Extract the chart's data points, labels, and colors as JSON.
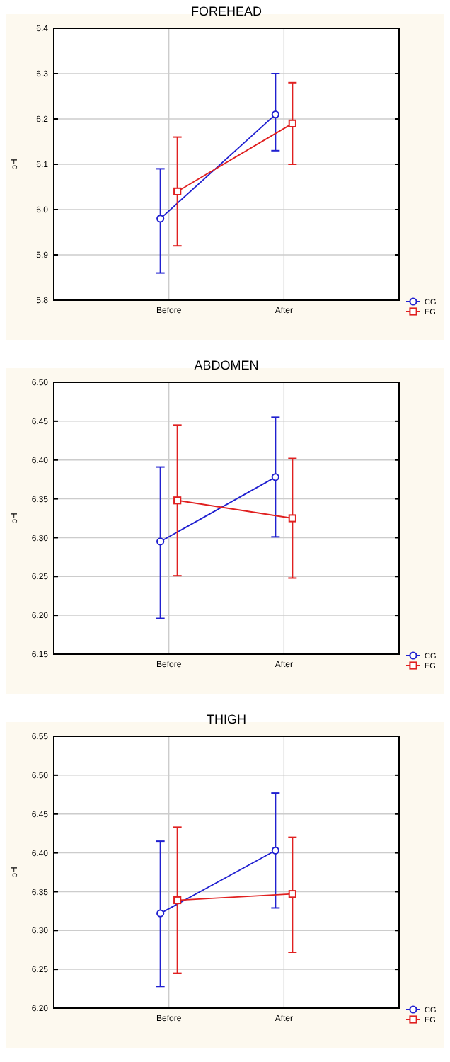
{
  "chart_data": [
    {
      "type": "line",
      "title": "FOREHEAD",
      "ylabel": "pH",
      "categories": [
        "Before",
        "After"
      ],
      "ylim": [
        5.8,
        6.4
      ],
      "yticks": [
        5.8,
        5.9,
        {
          "value": 6.0,
          "label": "6.0"
        },
        6.1,
        6.2,
        6.3,
        6.4
      ],
      "grid": true,
      "legend": "bottom right",
      "line_style": "solid",
      "series": [
        {
          "name": "CG",
          "color": "#2020d0",
          "marker": "circle",
          "values": [
            5.98,
            6.21
          ],
          "errors": [
            [
              5.86,
              6.09
            ],
            [
              6.13,
              6.3
            ]
          ]
        },
        {
          "name": "EG",
          "color": "#e02020",
          "marker": "square",
          "values": [
            6.04,
            6.19
          ],
          "errors": [
            [
              5.92,
              6.16
            ],
            [
              6.1,
              6.28
            ]
          ]
        }
      ]
    },
    {
      "type": "line",
      "title": "ABDOMEN",
      "ylabel": "pH",
      "categories": [
        "Before",
        "After"
      ],
      "ylim": [
        6.15,
        6.5
      ],
      "yticks": [
        6.15,
        {
          "value": 6.2,
          "label": "6.20"
        },
        6.25,
        {
          "value": 6.3,
          "label": "6.30"
        },
        6.35,
        {
          "value": 6.4,
          "label": "6.40"
        },
        6.45,
        {
          "value": 6.5,
          "label": "6.50"
        }
      ],
      "grid": true,
      "legend": "bottom right",
      "line_style": "solid",
      "series": [
        {
          "name": "CG",
          "color": "#2020d0",
          "marker": "circle",
          "values": [
            6.295,
            6.378
          ],
          "errors": [
            [
              6.196,
              6.391
            ],
            [
              6.301,
              6.455
            ]
          ]
        },
        {
          "name": "EG",
          "color": "#e02020",
          "marker": "square",
          "values": [
            6.348,
            6.325
          ],
          "errors": [
            [
              6.251,
              6.445
            ],
            [
              6.248,
              6.402
            ]
          ]
        }
      ]
    },
    {
      "type": "line",
      "title": "THIGH",
      "ylabel": "pH",
      "categories": [
        "Before",
        "After"
      ],
      "ylim": [
        6.2,
        6.55
      ],
      "yticks": [
        {
          "value": 6.2,
          "label": "6.20"
        },
        6.25,
        {
          "value": 6.3,
          "label": "6.30"
        },
        6.35,
        {
          "value": 6.4,
          "label": "6.40"
        },
        6.45,
        {
          "value": 6.5,
          "label": "6.50"
        },
        6.55
      ],
      "grid": true,
      "legend": "bottom right",
      "line_style": "solid",
      "series": [
        {
          "name": "CG",
          "color": "#2020d0",
          "marker": "circle",
          "values": [
            6.322,
            6.403
          ],
          "errors": [
            [
              6.228,
              6.415
            ],
            [
              6.329,
              6.477
            ]
          ]
        },
        {
          "name": "EG",
          "color": "#e02020",
          "marker": "square",
          "values": [
            6.339,
            6.347
          ],
          "errors": [
            [
              6.245,
              6.433
            ],
            [
              6.272,
              6.42
            ]
          ]
        }
      ]
    }
  ]
}
